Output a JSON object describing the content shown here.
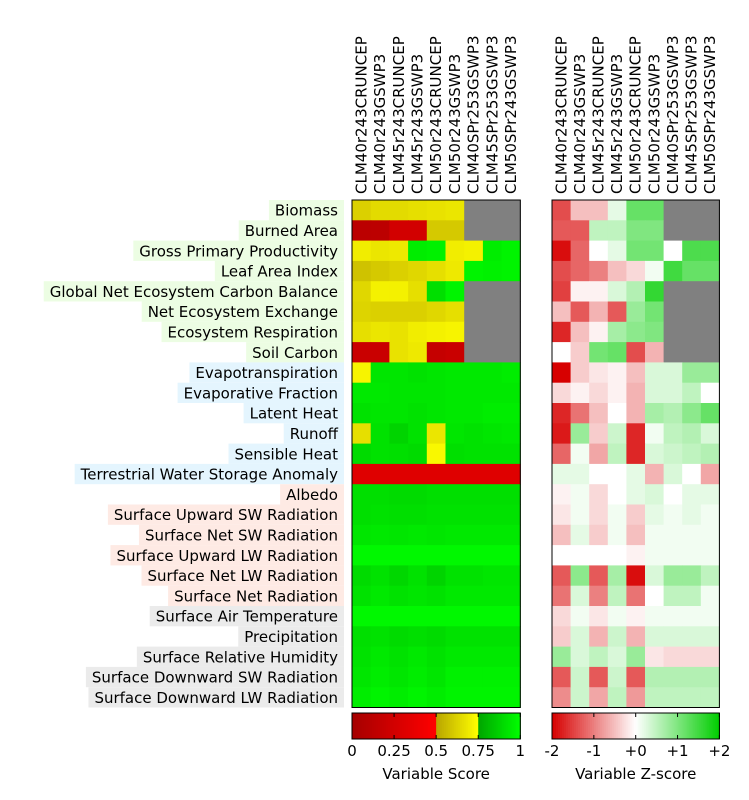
{
  "chart_data": [
    {
      "type": "heatmap",
      "name": "Variable Score",
      "columns": [
        "CLM40r243CRUNCEP",
        "CLM40r243GSWP3",
        "CLM45r243CRUNCEP",
        "CLM45r243GSWP3",
        "CLM50r243CRUNCEP",
        "CLM50r243GSWP3",
        "CLM40SPr253GSWP3",
        "CLM45SPr253GSWP3",
        "CLM50SPr243GSWP3"
      ],
      "rows": [
        {
          "label": "Biomass",
          "group": "ecosystem",
          "values": [
            0.62,
            0.65,
            0.65,
            0.66,
            0.67,
            0.68,
            null,
            null,
            null
          ]
        },
        {
          "label": "Burned Area",
          "group": "ecosystem",
          "values": [
            0.12,
            0.13,
            0.25,
            0.25,
            0.6,
            0.6,
            null,
            null,
            null
          ]
        },
        {
          "label": "Gross Primary Productivity",
          "group": "ecosystem",
          "values": [
            0.7,
            0.68,
            0.69,
            0.95,
            0.96,
            0.7,
            0.71,
            0.95,
            0.97
          ]
        },
        {
          "label": "Leaf Area Index",
          "group": "ecosystem",
          "values": [
            0.58,
            0.6,
            0.62,
            0.64,
            0.66,
            0.69,
            0.97,
            0.96,
            0.97
          ]
        },
        {
          "label": "Global Net Ecosystem Carbon Balance",
          "group": "ecosystem",
          "values": [
            0.64,
            0.71,
            0.71,
            0.66,
            0.91,
            0.97,
            null,
            null,
            null
          ]
        },
        {
          "label": "Net Ecosystem Exchange",
          "group": "ecosystem",
          "values": [
            0.63,
            0.62,
            0.62,
            0.62,
            0.64,
            0.66,
            null,
            null,
            null
          ]
        },
        {
          "label": "Ecosystem Respiration",
          "group": "ecosystem",
          "values": [
            0.66,
            0.68,
            0.67,
            0.7,
            0.71,
            0.72,
            null,
            null,
            null
          ]
        },
        {
          "label": "Soil Carbon",
          "group": "ecosystem",
          "values": [
            0.2,
            0.2,
            0.67,
            0.69,
            0.18,
            0.2,
            null,
            null,
            null
          ]
        },
        {
          "label": "Evapotranspiration",
          "group": "hydrology",
          "values": [
            0.72,
            0.93,
            0.93,
            0.92,
            0.93,
            0.94,
            0.94,
            0.94,
            0.95
          ]
        },
        {
          "label": "Evaporative Fraction",
          "group": "hydrology",
          "values": [
            0.94,
            0.94,
            0.93,
            0.93,
            0.93,
            0.94,
            0.94,
            0.94,
            0.94
          ]
        },
        {
          "label": "Latent Heat",
          "group": "hydrology",
          "values": [
            0.92,
            0.93,
            0.93,
            0.92,
            0.93,
            0.94,
            0.94,
            0.95,
            0.95
          ]
        },
        {
          "label": "Runoff",
          "group": "hydrology",
          "values": [
            0.66,
            0.92,
            0.88,
            0.92,
            0.68,
            0.93,
            0.92,
            0.93,
            0.94
          ]
        },
        {
          "label": "Sensible Heat",
          "group": "hydrology",
          "values": [
            0.9,
            0.92,
            0.91,
            0.9,
            0.73,
            0.91,
            0.92,
            0.92,
            0.92
          ]
        },
        {
          "label": "Terrestrial Water Storage Anomaly",
          "group": "hydrology",
          "values": [
            0.32,
            0.32,
            0.32,
            0.32,
            0.32,
            0.32,
            0.32,
            0.32,
            0.32
          ]
        },
        {
          "label": "Albedo",
          "group": "radiation",
          "values": [
            0.91,
            0.91,
            0.9,
            0.9,
            0.91,
            0.91,
            0.91,
            0.91,
            0.91
          ]
        },
        {
          "label": "Surface Upward SW Radiation",
          "group": "radiation",
          "values": [
            0.91,
            0.92,
            0.91,
            0.91,
            0.92,
            0.92,
            0.92,
            0.92,
            0.92
          ]
        },
        {
          "label": "Surface Net SW Radiation",
          "group": "radiation",
          "values": [
            0.93,
            0.94,
            0.93,
            0.94,
            0.93,
            0.94,
            0.94,
            0.94,
            0.94
          ]
        },
        {
          "label": "Surface Upward LW Radiation",
          "group": "radiation",
          "values": [
            0.98,
            0.98,
            0.98,
            0.98,
            0.98,
            0.98,
            0.98,
            0.98,
            0.98
          ]
        },
        {
          "label": "Surface Net LW Radiation",
          "group": "radiation",
          "values": [
            0.9,
            0.92,
            0.89,
            0.92,
            0.88,
            0.92,
            0.92,
            0.93,
            0.93
          ]
        },
        {
          "label": "Surface Net Radiation",
          "group": "radiation",
          "values": [
            0.92,
            0.94,
            0.92,
            0.93,
            0.92,
            0.94,
            0.94,
            0.94,
            0.94
          ]
        },
        {
          "label": "Surface Air Temperature",
          "group": "forcing",
          "values": [
            0.98,
            0.98,
            0.98,
            0.98,
            0.98,
            0.98,
            0.98,
            0.98,
            0.98
          ]
        },
        {
          "label": "Precipitation",
          "group": "forcing",
          "values": [
            0.91,
            0.92,
            0.9,
            0.91,
            0.9,
            0.92,
            0.92,
            0.92,
            0.92
          ]
        },
        {
          "label": "Surface Relative Humidity",
          "group": "forcing",
          "values": [
            0.92,
            0.94,
            0.92,
            0.94,
            0.92,
            0.94,
            0.94,
            0.94,
            0.94
          ]
        },
        {
          "label": "Surface Downward SW Radiation",
          "group": "forcing",
          "values": [
            0.93,
            0.95,
            0.93,
            0.95,
            0.93,
            0.96,
            0.96,
            0.96,
            0.96
          ]
        },
        {
          "label": "Surface Downward LW Radiation",
          "group": "forcing",
          "values": [
            0.95,
            0.97,
            0.95,
            0.97,
            0.95,
            0.97,
            0.97,
            0.97,
            0.97
          ]
        }
      ],
      "colorbar": {
        "label": "Variable Score",
        "ticks": [
          "0",
          "0.25",
          "0.5",
          "0.75",
          "1"
        ],
        "range": [
          0,
          1
        ]
      }
    },
    {
      "type": "heatmap",
      "name": "Variable Z-score",
      "columns": [
        "CLM40r243CRUNCEP",
        "CLM40r243GSWP3",
        "CLM45r243CRUNCEP",
        "CLM45r243GSWP3",
        "CLM50r243CRUNCEP",
        "CLM50r243GSWP3",
        "CLM40SPr253GSWP3",
        "CLM45SPr253GSWP3",
        "CLM50SPr243GSWP3"
      ],
      "rows": [
        {
          "label": "Biomass",
          "values": [
            -1.4,
            -0.5,
            -0.5,
            0.2,
            1.2,
            1.2,
            null,
            null,
            null
          ]
        },
        {
          "label": "Burned Area",
          "values": [
            -1.3,
            -1.3,
            0.5,
            0.5,
            1.0,
            1.0,
            null,
            null,
            null
          ]
        },
        {
          "label": "Gross Primary Productivity",
          "values": [
            -1.9,
            -1.2,
            0.0,
            0.2,
            1.1,
            1.1,
            0.0,
            1.4,
            1.4
          ]
        },
        {
          "label": "Leaf Area Index",
          "values": [
            -1.4,
            -1.2,
            -1.0,
            -0.5,
            -0.3,
            0.1,
            1.5,
            1.2,
            1.2
          ]
        },
        {
          "label": "Global Net Ecosystem Carbon Balance",
          "values": [
            -1.5,
            -0.1,
            -0.1,
            0.3,
            0.6,
            1.6,
            null,
            null,
            null
          ]
        },
        {
          "label": "Net Ecosystem Exchange",
          "values": [
            -0.5,
            -1.3,
            -0.6,
            -1.3,
            0.8,
            1.1,
            null,
            null,
            null
          ]
        },
        {
          "label": "Ecosystem Respiration",
          "values": [
            -1.7,
            -0.5,
            -0.1,
            0.7,
            0.9,
            1.0,
            null,
            null,
            null
          ]
        },
        {
          "label": "Soil Carbon",
          "values": [
            0.0,
            -0.4,
            1.1,
            1.2,
            -1.4,
            -0.6,
            null,
            null,
            null
          ]
        },
        {
          "label": "Evapotranspiration",
          "values": [
            -2.0,
            -0.4,
            -0.2,
            -0.1,
            -0.5,
            0.3,
            0.3,
            0.8,
            0.8
          ]
        },
        {
          "label": "Evaporative Fraction",
          "values": [
            -0.3,
            -0.1,
            -0.3,
            -0.1,
            -0.6,
            0.3,
            0.3,
            0.5,
            0.0
          ]
        },
        {
          "label": "Latent Heat",
          "values": [
            -1.7,
            -1.1,
            -0.5,
            0.0,
            -0.6,
            0.7,
            0.6,
            0.9,
            1.2
          ]
        },
        {
          "label": "Runoff",
          "values": [
            -1.8,
            0.8,
            -0.4,
            0.4,
            -1.7,
            0.1,
            0.5,
            0.6,
            0.3
          ]
        },
        {
          "label": "Sensible Heat",
          "values": [
            -1.2,
            0.1,
            -0.7,
            0.5,
            -1.7,
            0.3,
            0.4,
            0.5,
            0.6
          ]
        },
        {
          "label": "Terrestrial Water Storage Anomaly",
          "values": [
            0.2,
            0.2,
            0.0,
            0.0,
            0.2,
            -0.6,
            0.3,
            0.0,
            -0.7
          ]
        },
        {
          "label": "Albedo",
          "values": [
            -0.1,
            0.1,
            -0.3,
            0.0,
            0.2,
            0.3,
            0.0,
            0.2,
            0.2
          ]
        },
        {
          "label": "Surface Upward SW Radiation",
          "values": [
            -0.2,
            0.1,
            -0.3,
            0.1,
            -0.4,
            0.2,
            0.1,
            0.2,
            0.1
          ]
        },
        {
          "label": "Surface Net SW Radiation",
          "values": [
            -0.5,
            0.2,
            -0.4,
            0.1,
            -0.5,
            0.1,
            0.1,
            0.1,
            0.1
          ]
        },
        {
          "label": "Surface Upward LW Radiation",
          "values": [
            0.0,
            0.0,
            0.0,
            0.0,
            -0.1,
            0.1,
            0.1,
            0.1,
            0.1
          ]
        },
        {
          "label": "Surface Net LW Radiation",
          "values": [
            -1.3,
            0.9,
            -1.3,
            0.7,
            -1.9,
            0.3,
            0.8,
            0.8,
            0.5
          ]
        },
        {
          "label": "Surface Net Radiation",
          "values": [
            -1.1,
            0.3,
            -1.0,
            0.5,
            -1.1,
            0.0,
            0.5,
            0.5,
            0.1
          ]
        },
        {
          "label": "Surface Air Temperature",
          "values": [
            -0.3,
            0.1,
            -0.2,
            0.1,
            -0.1,
            0.1,
            0.1,
            0.1,
            0.1
          ]
        },
        {
          "label": "Precipitation",
          "values": [
            -0.4,
            0.3,
            -0.6,
            0.4,
            -0.6,
            0.3,
            0.3,
            0.3,
            0.3
          ]
        },
        {
          "label": "Surface Relative Humidity",
          "values": [
            0.8,
            0.3,
            0.5,
            0.3,
            0.8,
            -0.2,
            -0.3,
            -0.3,
            -0.3
          ]
        },
        {
          "label": "Surface Downward SW Radiation",
          "values": [
            -1.3,
            0.4,
            -1.3,
            0.4,
            -1.3,
            0.6,
            0.6,
            0.6,
            0.6
          ]
        },
        {
          "label": "Surface Downward LW Radiation",
          "values": [
            -0.9,
            0.4,
            -0.7,
            0.5,
            -0.8,
            0.5,
            0.5,
            0.5,
            0.5
          ]
        }
      ],
      "colorbar": {
        "label": "Variable Z-score",
        "ticks": [
          "-2",
          "-1",
          "+0",
          "+1",
          "+2"
        ],
        "range": [
          -2,
          2
        ]
      }
    }
  ],
  "colors": {
    "ecosystem_bg": "#ECFDE3",
    "hydrology_bg": "#E4F5FE",
    "radiation_bg": "#FEEAE4",
    "forcing_bg": "#EBEBEB",
    "missing": "#808080"
  }
}
